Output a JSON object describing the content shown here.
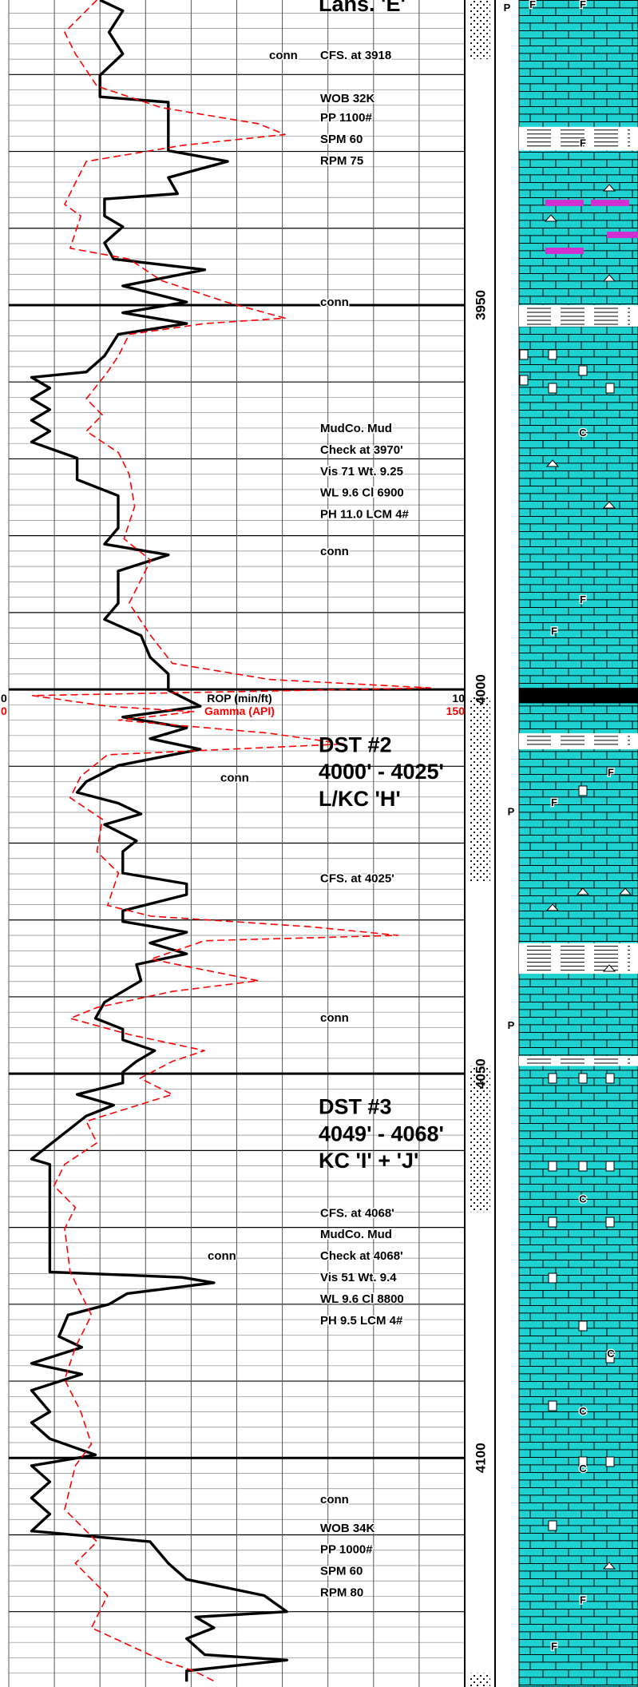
{
  "chart_data": {
    "type": "log",
    "depth_lim": [
      3910.3,
      4129.8
    ],
    "depth_ticks": [
      3950,
      4000,
      4050,
      4100
    ],
    "depth_grid_interval": 2,
    "depth_major_interval": 10,
    "x_grid_interval": 1,
    "series": [
      {
        "name": "ROP (min/ft)",
        "color": "#000000",
        "xlim": [
          0,
          10
        ],
        "depth": [
          3910.3,
          3911.7,
          3914.5,
          3917.3,
          3920.1,
          3922.9,
          3923.6,
          3929.9,
          3931.3,
          3933.4,
          3935.5,
          3936.2,
          3938.4,
          3939.8,
          3941.9,
          3944.0,
          3945.4,
          3947.5,
          3949.6,
          3951.0,
          3952.4,
          3953.8,
          3956.6,
          3958.7,
          3959.4,
          3960.8,
          3962.2,
          3963.6,
          3965.0,
          3966.4,
          3967.8,
          3969.9,
          3972.7,
          3974.8,
          3979.0,
          3981.1,
          3982.5,
          3984.6,
          3988.8,
          3990.9,
          3993.0,
          3995.8,
          3998.0,
          4000.1,
          4002.2,
          4003.6,
          4005.0,
          4006.4,
          4007.8,
          4009.9,
          4012.0,
          4013.4,
          4014.8,
          4016.2,
          4017.6,
          4019.7,
          4021.1,
          4023.9,
          4025.3,
          4026.7,
          4028.8,
          4030.2,
          4031.6,
          4033.0,
          4034.4,
          4035.8,
          4037.9,
          4040.7,
          4042.8,
          4044.2,
          4045.6,
          4047.0,
          4048.4,
          4049.8,
          4051.2,
          4052.7,
          4054.1,
          4055.5,
          4061.1,
          4061.8,
          4075.8,
          4076.5,
          4077.2,
          4078.6,
          4080.0,
          4081.4,
          4084.2,
          4085.6,
          4087.7,
          4089.1,
          4091.2,
          4094.0,
          4095.4,
          4097.5,
          4099.6,
          4101.0,
          4103.1,
          4105.2,
          4107.3,
          4109.5,
          4110.9,
          4113.7,
          4115.8,
          4117.9,
          4120.0,
          4120.7,
          4122.1,
          4123.5,
          4125.6,
          4126.3,
          4127.7,
          4129.1
        ],
        "values": [
          2.0,
          2.5,
          2.2,
          2.5,
          2.0,
          2.0,
          3.5,
          3.5,
          4.8,
          3.5,
          3.7,
          2.1,
          2.1,
          2.5,
          2.1,
          2.3,
          4.3,
          2.5,
          3.9,
          2.5,
          3.9,
          2.4,
          2.1,
          1.7,
          0.5,
          0.9,
          0.5,
          0.9,
          0.5,
          0.9,
          0.5,
          1.5,
          1.5,
          2.4,
          2.4,
          2.1,
          3.5,
          2.4,
          2.4,
          2.1,
          2.9,
          3.1,
          3.5,
          3.5,
          4.2,
          2.5,
          3.9,
          3.1,
          4.2,
          2.4,
          1.7,
          1.5,
          2.4,
          2.9,
          2.1,
          2.8,
          2.5,
          2.5,
          3.9,
          3.9,
          2.5,
          2.5,
          3.9,
          3.1,
          3.9,
          2.8,
          2.9,
          2.1,
          1.9,
          2.5,
          2.5,
          3.2,
          2.8,
          2.5,
          2.5,
          1.5,
          2.3,
          1.7,
          0.5,
          0.9,
          0.9,
          3.8,
          4.5,
          2.6,
          2.2,
          1.3,
          1.1,
          1.6,
          0.5,
          1.6,
          0.5,
          0.9,
          0.5,
          0.9,
          1.9,
          0.5,
          0.9,
          0.5,
          0.9,
          0.5,
          3.1,
          3.5,
          3.9,
          5.6,
          6.1,
          4.1,
          4.5,
          3.9,
          4.3,
          6.1,
          3.9,
          3.9
        ]
      },
      {
        "name": "Gamma (API)",
        "color": "#ff0000",
        "xlim": [
          0,
          150
        ],
        "depth": [
          3910.3,
          3914.5,
          3917.3,
          3921.5,
          3924.3,
          3926.4,
          3927.8,
          3929.2,
          3931.3,
          3934.1,
          3936.9,
          3938.4,
          3942.6,
          3944.0,
          3946.8,
          3949.6,
          3951.7,
          3952.4,
          3953.8,
          3956.6,
          3958.7,
          3962.2,
          3964.3,
          3966.4,
          3969.2,
          3972.0,
          3976.2,
          3980.4,
          3983.2,
          3988.8,
          3993.0,
          3996.6,
          3998.7,
          3999.8,
          4000.8,
          4002.2,
          4002.9,
          4004.0,
          4005.7,
          4007.1,
          4008.5,
          4011.3,
          4014.1,
          4016.9,
          4021.1,
          4023.9,
          4028.1,
          4029.5,
          4030.9,
          4032.0,
          4032.7,
          4035.1,
          4037.9,
          4039.3,
          4041.4,
          4042.8,
          4044.9,
          4047.0,
          4048.4,
          4050.6,
          4052.7,
          4056.2,
          4059.0,
          4061.8,
          4064.6,
          4067.4,
          4070.2,
          4075.8,
          4081.4,
          4085.6,
          4089.8,
          4094.0,
          4098.2,
          4101.0,
          4106.7,
          4110.9,
          4113.7,
          4117.9,
          4122.1,
          4126.3,
          4127.7,
          4129.1
        ],
        "values": [
          29.0,
          18.4,
          21.9,
          29.0,
          50.2,
          82.1,
          90.9,
          57.3,
          25.5,
          21.9,
          18.4,
          23.7,
          20.2,
          39.6,
          50.2,
          71.5,
          90.9,
          64.4,
          39.6,
          36.1,
          32.5,
          25.5,
          30.8,
          25.5,
          36.1,
          39.6,
          41.4,
          37.9,
          46.7,
          39.6,
          46.7,
          53.8,
          85.6,
          138.7,
          7.8,
          32.5,
          60.9,
          36.1,
          85.6,
          110.4,
          32.5,
          23.7,
          20.2,
          30.8,
          29.0,
          36.1,
          32.5,
          46.7,
          99.8,
          128.1,
          64.4,
          46.7,
          82.1,
          53.8,
          29.0,
          20.2,
          39.6,
          64.4,
          53.8,
          43.2,
          53.8,
          25.5,
          29.0,
          18.4,
          14.9,
          21.9,
          18.4,
          20.2,
          27.2,
          21.9,
          18.4,
          23.7,
          27.2,
          21.9,
          18.4,
          29.0,
          21.9,
          32.5,
          27.2,
          50.2,
          60.9,
          67.9
        ]
      }
    ],
    "headings": [
      {
        "text": "Lans. 'E'",
        "depth": 3911.0
      },
      {
        "text": "DST #2",
        "depth": 4007.4
      },
      {
        "text": "4000' - 4025'",
        "depth": 4010.9
      },
      {
        "text": "L/KC 'H'",
        "depth": 4014.4
      },
      {
        "text": "DST #3",
        "depth": 4054.5
      },
      {
        "text": "4049' - 4068'",
        "depth": 4058.0
      },
      {
        "text": "KC 'I' + 'J'",
        "depth": 4061.5
      }
    ],
    "notes": [
      {
        "text": "CFS. at 3918",
        "depth": 3917.6
      },
      {
        "text": "WOB 32K",
        "depth": 3923.2
      },
      {
        "text": "PP 1100#",
        "depth": 3925.7
      },
      {
        "text": "SPM 60",
        "depth": 3928.5
      },
      {
        "text": "RPM 75",
        "depth": 3931.3
      },
      {
        "text": "conn",
        "depth": 3949.7
      },
      {
        "text": "MudCo. Mud",
        "depth": 3966.1
      },
      {
        "text": "Check at 3970'",
        "depth": 3968.9
      },
      {
        "text": "Vis 71 Wt. 9.25",
        "depth": 3971.7
      },
      {
        "text": "WL 9.6 Cl 6900",
        "depth": 3974.5
      },
      {
        "text": "PH 11.0 LCM 4#",
        "depth": 3977.3
      },
      {
        "text": "conn",
        "depth": 3982.1
      },
      {
        "text": "CFS. at 4025'",
        "depth": 4024.7
      },
      {
        "text": "conn",
        "depth": 4042.8
      },
      {
        "text": "CFS. at 4068'",
        "depth": 4068.2
      },
      {
        "text": "MudCo. Mud",
        "depth": 4071.0
      },
      {
        "text": "Check at 4068'",
        "depth": 4073.8
      },
      {
        "text": "Vis 51 Wt. 9.4",
        "depth": 4076.6
      },
      {
        "text": "WL 9.6 Cl 8800",
        "depth": 4079.4
      },
      {
        "text": "PH 9.5 LCM 4#",
        "depth": 4082.2
      },
      {
        "text": "conn",
        "depth": 4105.5
      },
      {
        "text": "WOB 34K",
        "depth": 4109.2
      },
      {
        "text": "PP 1000#",
        "depth": 4112.0
      },
      {
        "text": "SPM 60",
        "depth": 4114.8
      },
      {
        "text": "RPM 80",
        "depth": 4117.6
      }
    ],
    "side_notes": [
      {
        "text": "conn",
        "depth": 3917.6
      },
      {
        "text": "conn",
        "depth": 4011.6
      },
      {
        "text": "conn",
        "depth": 4073.8
      }
    ],
    "porosity_intervals": [
      [
        3910.3,
        3918
      ],
      [
        4001,
        4025
      ],
      [
        4049,
        4068
      ],
      [
        4128,
        4129.8
      ]
    ],
    "lithology": {
      "color": "#1fd2d2",
      "bands": [
        {
          "from": 3926.8,
          "to": 3929.9,
          "color": "#ffffff"
        },
        {
          "from": 3950,
          "to": 3952.8,
          "color": "#ffffff"
        },
        {
          "from": 3999.8,
          "to": 4001.8,
          "color": "#000000"
        },
        {
          "from": 4005.7,
          "to": 4007.8,
          "color": "#ffffff"
        },
        {
          "from": 4033,
          "to": 4037,
          "color": "#ffffff"
        },
        {
          "from": 4047.7,
          "to": 4049,
          "color": "#ffffff"
        }
      ],
      "symbols": [
        {
          "depth": 3911.0,
          "label": "F"
        },
        {
          "depth": 3911.0,
          "label": "F"
        },
        {
          "depth": 3929.0,
          "label": "F"
        },
        {
          "depth": 3988.4,
          "label": "F"
        },
        {
          "depth": 3992.5,
          "label": "F"
        },
        {
          "depth": 4010.9,
          "label": "F"
        },
        {
          "depth": 4014.8,
          "label": "F"
        },
        {
          "depth": 4118.6,
          "label": "F"
        },
        {
          "depth": 4124.6,
          "label": "F"
        },
        {
          "depth": 3966.7,
          "label": "C"
        },
        {
          "depth": 4066.4,
          "label": "C"
        },
        {
          "depth": 4086.5,
          "label": "C"
        },
        {
          "depth": 4094.0,
          "label": "C"
        },
        {
          "depth": 4101.5,
          "label": "C"
        },
        {
          "depth": 3911.4,
          "label": "P"
        },
        {
          "depth": 4016.0,
          "label": "P"
        },
        {
          "depth": 4043.8,
          "label": "P"
        }
      ]
    }
  }
}
